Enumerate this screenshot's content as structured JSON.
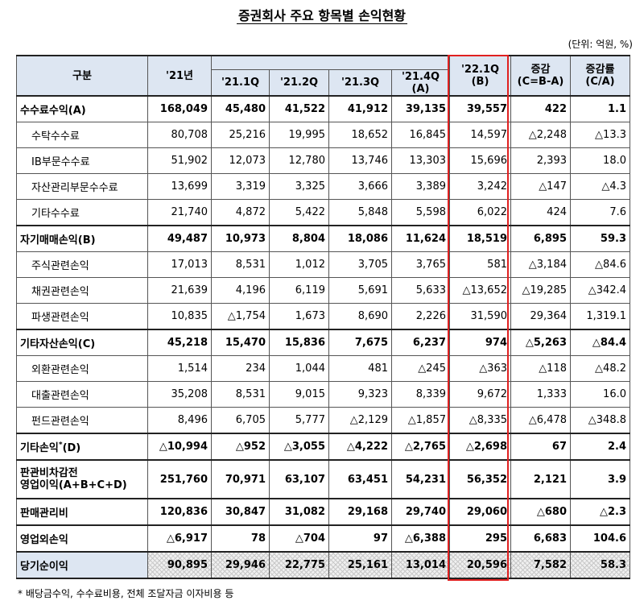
{
  "title": "증권회사 주요 항목별 손익현황",
  "unit": "(단위: 억원, %)",
  "headers": {
    "category": "구분",
    "y21": "'21년",
    "q1": "'21.1Q",
    "q2": "'21.2Q",
    "q3": "'21.3Q",
    "q4a": "'21.4Q",
    "q4b": "(A)",
    "q22a": "'22.1Q",
    "q22b": "(B)",
    "diffa": "증감",
    "diffb": "(C=B-A)",
    "ratea": "증감률",
    "rateb": "(C/A)"
  },
  "rows": [
    {
      "label": "수수료수익(A)",
      "v": [
        "168,049",
        "45,480",
        "41,522",
        "41,912",
        "39,135",
        "39,557",
        "422",
        "1.1"
      ]
    },
    {
      "label": "수탁수수료",
      "v": [
        "80,708",
        "25,216",
        "19,995",
        "18,652",
        "16,845",
        "14,597",
        "△2,248",
        "△13.3"
      ]
    },
    {
      "label": "IB부문수수료",
      "v": [
        "51,902",
        "12,073",
        "12,780",
        "13,746",
        "13,303",
        "15,696",
        "2,393",
        "18.0"
      ]
    },
    {
      "label": "자산관리부문수수료",
      "v": [
        "13,699",
        "3,319",
        "3,325",
        "3,666",
        "3,389",
        "3,242",
        "△147",
        "△4.3"
      ]
    },
    {
      "label": "기타수수료",
      "v": [
        "21,740",
        "4,872",
        "5,422",
        "5,848",
        "5,598",
        "6,022",
        "424",
        "7.6"
      ]
    },
    {
      "label": "자기매매손익(B)",
      "v": [
        "49,487",
        "10,973",
        "8,804",
        "18,086",
        "11,624",
        "18,519",
        "6,895",
        "59.3"
      ]
    },
    {
      "label": "주식관련손익",
      "v": [
        "17,013",
        "8,531",
        "1,012",
        "3,705",
        "3,765",
        "581",
        "△3,184",
        "△84.6"
      ]
    },
    {
      "label": "채권관련손익",
      "v": [
        "21,639",
        "4,196",
        "6,119",
        "5,691",
        "5,633",
        "△13,652",
        "△19,285",
        "△342.4"
      ]
    },
    {
      "label": "파생관련손익",
      "v": [
        "10,835",
        "△1,754",
        "1,673",
        "8,690",
        "2,226",
        "31,590",
        "29,364",
        "1,319.1"
      ]
    },
    {
      "label": "기타자산손익(C)",
      "v": [
        "45,218",
        "15,470",
        "15,836",
        "7,675",
        "6,237",
        "974",
        "△5,263",
        "△84.4"
      ]
    },
    {
      "label": "외환관련손익",
      "v": [
        "1,514",
        "234",
        "1,044",
        "481",
        "△245",
        "△363",
        "△118",
        "△48.2"
      ]
    },
    {
      "label": "대출관련손익",
      "v": [
        "35,208",
        "8,531",
        "9,015",
        "9,323",
        "8,339",
        "9,672",
        "1,333",
        "16.0"
      ]
    },
    {
      "label": "펀드관련손익",
      "v": [
        "8,496",
        "6,705",
        "5,777",
        "△2,129",
        "△1,857",
        "△8,335",
        "△6,478",
        "△348.8"
      ]
    },
    {
      "label": "기타손익",
      "label_sup": "*",
      "label_tail": "(D)",
      "v": [
        "△10,994",
        "△952",
        "△3,055",
        "△4,222",
        "△2,765",
        "△2,698",
        "67",
        "2.4"
      ]
    },
    {
      "label": "판관비차감전",
      "label2": "영업이익(A+B+C+D)",
      "v": [
        "251,760",
        "70,971",
        "63,107",
        "63,451",
        "54,231",
        "56,352",
        "2,121",
        "3.9"
      ]
    },
    {
      "label": "판매관리비",
      "v": [
        "120,836",
        "30,847",
        "31,082",
        "29,168",
        "29,740",
        "29,060",
        "△680",
        "△2.3"
      ]
    },
    {
      "label": "영업외손익",
      "v": [
        "△6,917",
        "78",
        "△704",
        "97",
        "△6,388",
        "295",
        "6,683",
        "104.6"
      ]
    },
    {
      "label": "당기순이익",
      "v": [
        "90,895",
        "29,946",
        "22,775",
        "25,161",
        "13,014",
        "20,596",
        "7,582",
        "58.3"
      ]
    }
  ],
  "footnote": "* 배당금수익, 수수료비용, 전체 조달자금 이자비용 등"
}
